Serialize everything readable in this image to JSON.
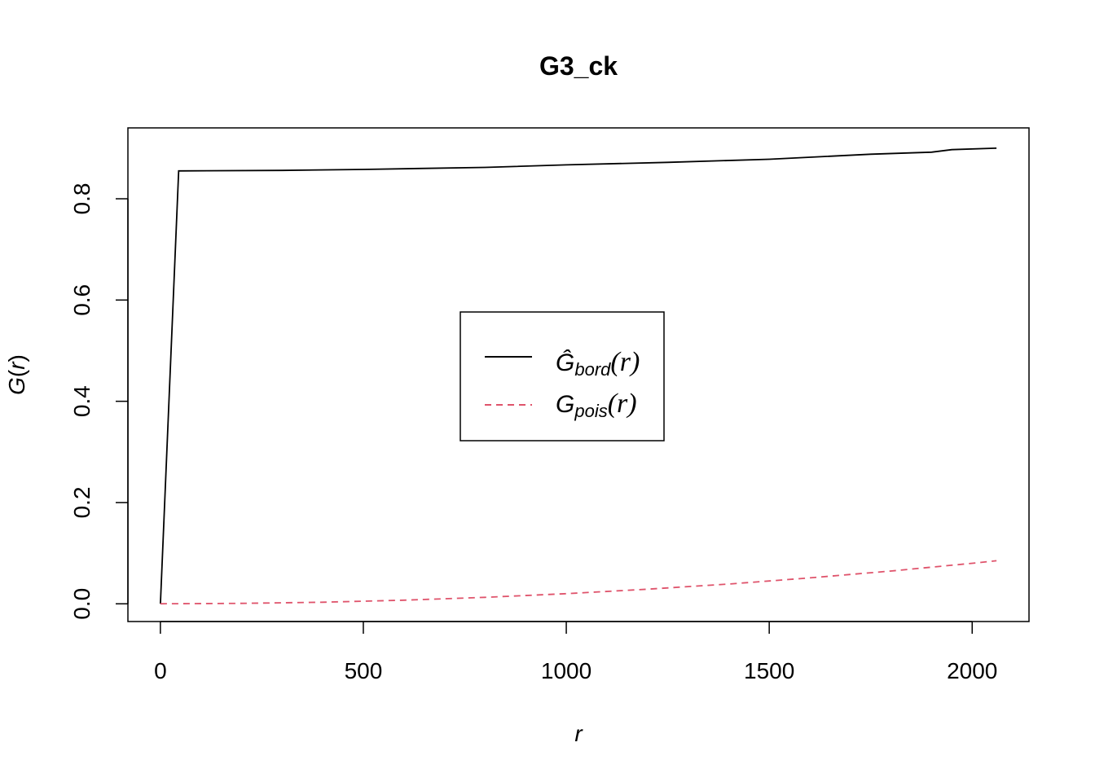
{
  "chart_data": {
    "type": "line",
    "title": "G3_ck",
    "xlabel": "r",
    "ylabel_main": "G",
    "ylabel_arg": "r",
    "xlim": [
      -80,
      2140
    ],
    "ylim": [
      -0.035,
      0.94
    ],
    "x_ticks": [
      0,
      500,
      1000,
      1500,
      2000
    ],
    "x_tick_labels": [
      "0",
      "500",
      "1000",
      "1500",
      "2000"
    ],
    "y_ticks": [
      0.0,
      0.2,
      0.4,
      0.6,
      0.8
    ],
    "y_tick_labels": [
      "0.0",
      "0.2",
      "0.4",
      "0.6",
      "0.8"
    ],
    "grid": false,
    "legend_position": "center",
    "series": [
      {
        "name": "bord",
        "legend_main": "Ĝ",
        "legend_sub": "bord",
        "legend_arg": "(r)",
        "color": "#000000",
        "dash": "solid",
        "points": [
          [
            0,
            0.0
          ],
          [
            45,
            0.855
          ],
          [
            300,
            0.856
          ],
          [
            500,
            0.858
          ],
          [
            800,
            0.862
          ],
          [
            1000,
            0.867
          ],
          [
            1250,
            0.872
          ],
          [
            1500,
            0.878
          ],
          [
            1750,
            0.888
          ],
          [
            1900,
            0.892
          ],
          [
            1950,
            0.897
          ],
          [
            2060,
            0.9
          ]
        ]
      },
      {
        "name": "pois",
        "legend_main": "G",
        "legend_sub": "pois",
        "legend_arg": "(r)",
        "color": "#df536b",
        "dash": "dashed",
        "points": [
          [
            0,
            0.0
          ],
          [
            200,
            0.0008
          ],
          [
            400,
            0.0032
          ],
          [
            600,
            0.0072
          ],
          [
            800,
            0.0128
          ],
          [
            1000,
            0.02
          ],
          [
            1200,
            0.0288
          ],
          [
            1400,
            0.039
          ],
          [
            1600,
            0.0512
          ],
          [
            1800,
            0.0648
          ],
          [
            2000,
            0.08
          ],
          [
            2060,
            0.085
          ]
        ]
      }
    ]
  }
}
